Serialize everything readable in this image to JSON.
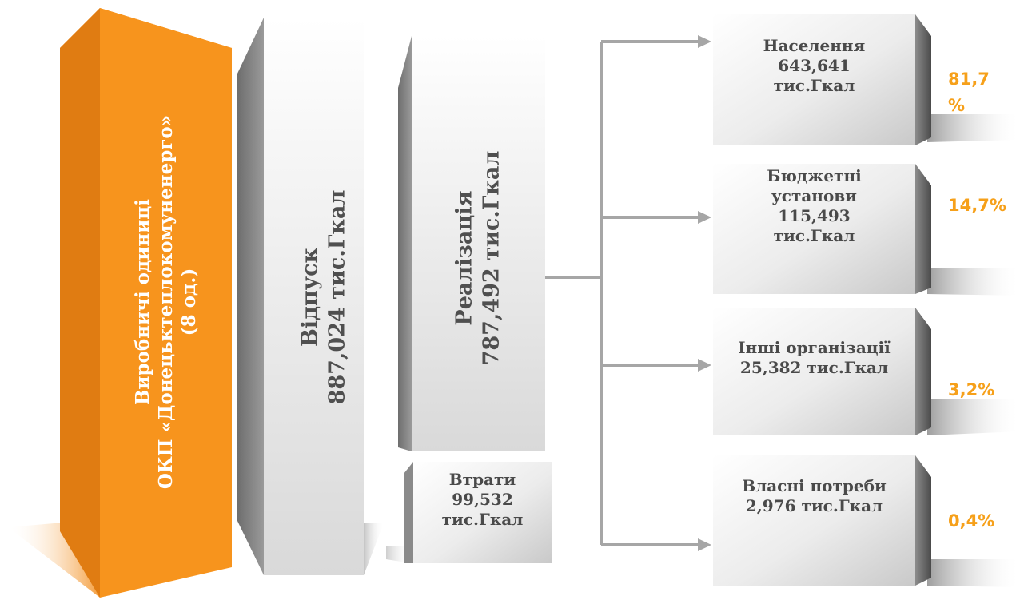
{
  "colors": {
    "orange": "#f7941d",
    "orange_dark": "#d06a08",
    "box_light": "#ffffff",
    "box_mid": "#d8d8d8",
    "box_dark": "#7a7a7a",
    "connector": "#a6a6a6",
    "percent_text": "#f6a01a"
  },
  "source": {
    "line1": "Виробничі одиниці",
    "line2": "ОКП «Донецьктеплокомуненерго»",
    "line3": "(8 од.)"
  },
  "release": {
    "line1": "Відпуск",
    "line2": "887,024 тис.Гкал"
  },
  "sales": {
    "line1": "Реалізація",
    "line2": "787,492 тис.Гкал"
  },
  "losses": {
    "line1": "Втрати",
    "line2": "99,532",
    "line3": "тис.Гкал"
  },
  "consumers": [
    {
      "lines": [
        "Населення",
        "643,641",
        "тис.Гкал"
      ],
      "percent_lines": [
        "81,7",
        "%"
      ]
    },
    {
      "lines": [
        "Бюджетні",
        "установи",
        "115,493",
        "тис.Гкал"
      ],
      "percent_lines": [
        "14,7%"
      ]
    },
    {
      "lines": [
        "Інші організації",
        "25,382 тис.Гкал"
      ],
      "percent_lines": [
        "3,2%"
      ]
    },
    {
      "lines": [
        "Власні потреби",
        "2,976 тис.Гкал"
      ],
      "percent_lines": [
        "0,4%"
      ]
    }
  ]
}
